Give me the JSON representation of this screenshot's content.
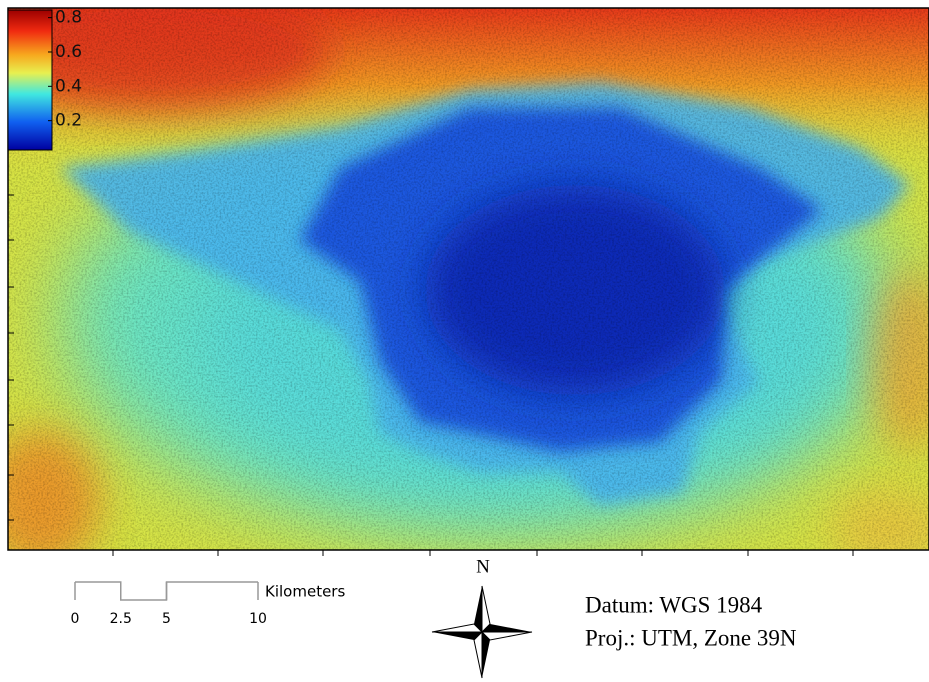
{
  "legend": {
    "ticks": [
      0.8,
      0.6,
      0.4,
      0.2
    ]
  },
  "scale_bar": {
    "unit": "Kilometers",
    "ticks": [
      0,
      2.5,
      5,
      10
    ]
  },
  "north_arrow": {
    "label": "N"
  },
  "info": {
    "datum": "Datum: WGS 1984",
    "projection": "Proj.: UTM, Zone 39N"
  }
}
